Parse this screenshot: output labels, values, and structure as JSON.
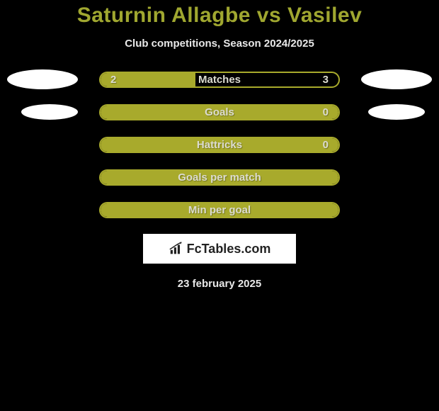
{
  "title": "Saturnin Allagbe vs Vasilev",
  "subtitle": "Club competitions, Season 2024/2025",
  "date": "23 february 2025",
  "brand": "FcTables.com",
  "colors": {
    "background": "#000000",
    "title_color": "#a0a730",
    "text_color": "#e8e8e8",
    "bar_border": "#a8aa2c",
    "bar_fill": "#a8aa2c",
    "bar_label": "#dcdcd0",
    "bar_value": "#dcdcd0",
    "ellipse": "#ffffff",
    "logo_bg": "#ffffff",
    "logo_text": "#222222"
  },
  "stats": [
    {
      "label": "Matches",
      "left_value": "2",
      "right_value": "3",
      "fill_percent": 40,
      "show_left_ellipse": true,
      "show_right_ellipse": true,
      "ellipse_size": "large"
    },
    {
      "label": "Goals",
      "left_value": "",
      "right_value": "0",
      "fill_percent": 100,
      "show_left_ellipse": true,
      "show_right_ellipse": true,
      "ellipse_size": "small"
    },
    {
      "label": "Hattricks",
      "left_value": "",
      "right_value": "0",
      "fill_percent": 100,
      "show_left_ellipse": false,
      "show_right_ellipse": false
    },
    {
      "label": "Goals per match",
      "left_value": "",
      "right_value": "",
      "fill_percent": 100,
      "show_left_ellipse": false,
      "show_right_ellipse": false
    },
    {
      "label": "Min per goal",
      "left_value": "",
      "right_value": "",
      "fill_percent": 100,
      "show_left_ellipse": false,
      "show_right_ellipse": false
    }
  ]
}
